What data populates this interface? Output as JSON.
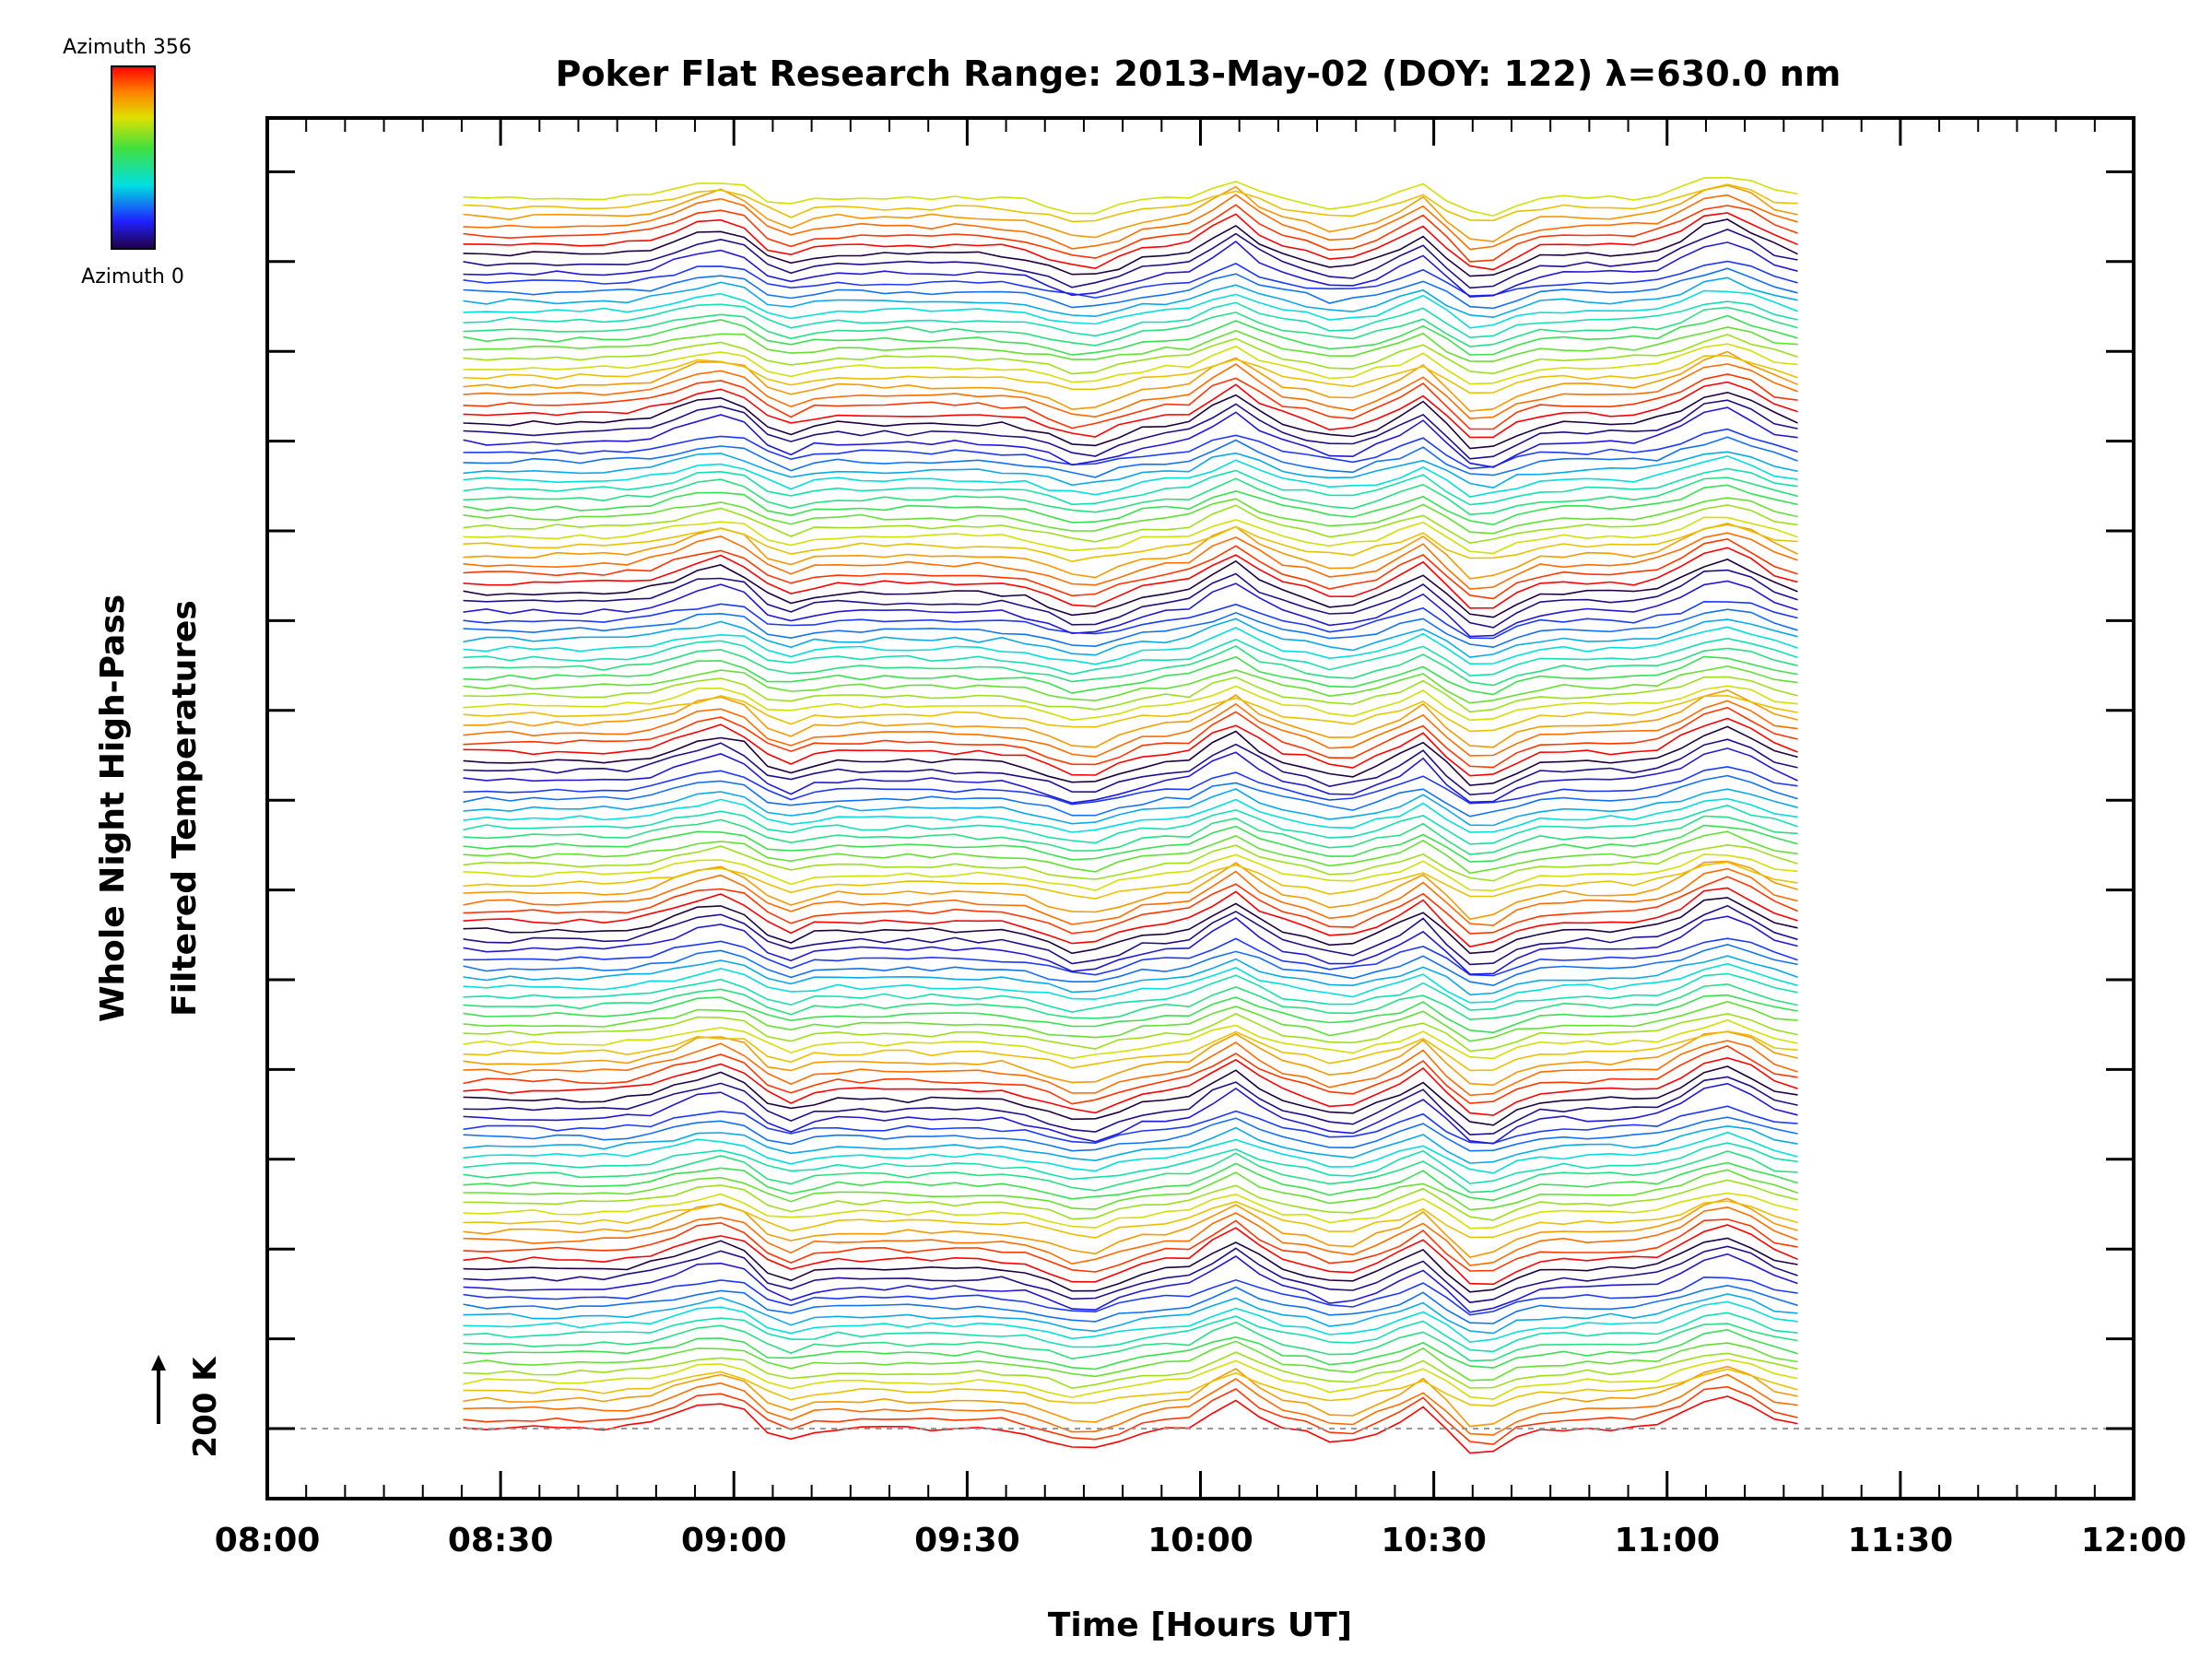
{
  "chart_data": {
    "type": "line",
    "title": "Poker Flat Research Range: 2013-May-02 (DOY: 122) λ=630.0 nm",
    "xlabel": "Time [Hours UT]",
    "ylabel_line1": "Whole Night High-Pass",
    "ylabel_line2": "Filtered Temperatures",
    "x_ticks": [
      "08:00",
      "08:30",
      "09:00",
      "09:30",
      "10:00",
      "10:30",
      "11:00",
      "11:30",
      "12:00"
    ],
    "xlim_hours": [
      8.0,
      12.0
    ],
    "data_range_hours": [
      8.42,
      11.28
    ],
    "y_scale_bar": "200 K",
    "grid": false,
    "colorbar": {
      "top_label": "Azimuth 356",
      "bottom_label": "Azimuth 0",
      "min": 0,
      "max": 356,
      "placement": "top-left"
    },
    "series_description": "Stacked high-pass filtered temperature traces, colored by azimuth (0-356)"
  }
}
